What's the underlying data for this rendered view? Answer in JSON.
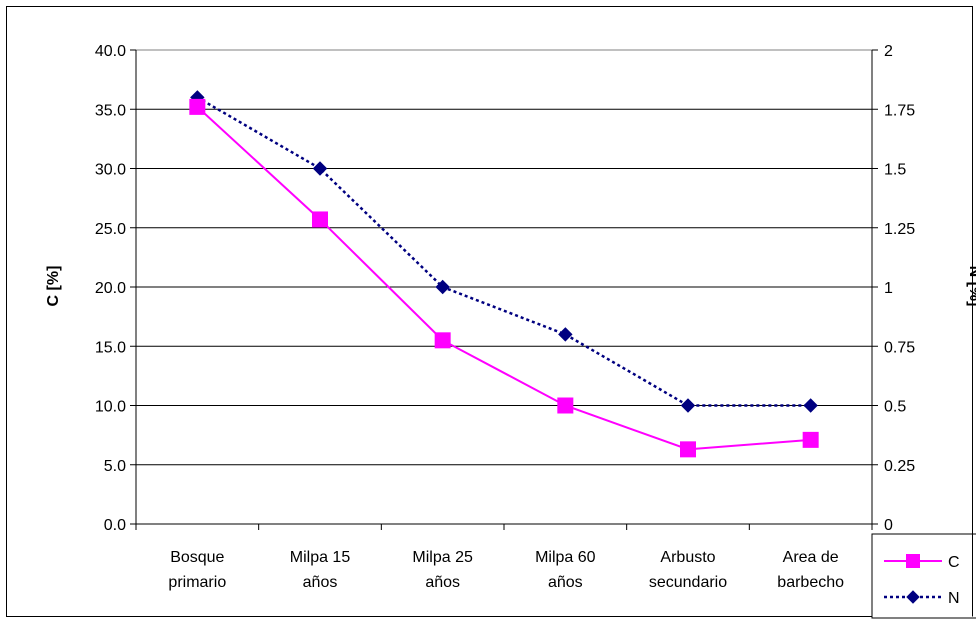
{
  "chart_data": {
    "type": "line",
    "categories": [
      [
        "Bosque",
        "primario"
      ],
      [
        "Milpa 15",
        "años"
      ],
      [
        "Milpa 25",
        "años"
      ],
      [
        "Milpa 60",
        "años"
      ],
      [
        "Arbusto",
        "secundario"
      ],
      [
        "Area de",
        "barbecho"
      ]
    ],
    "ylabel_left": "C [%]",
    "ylabel_right": "N [%]",
    "ylim_left": [
      0,
      40
    ],
    "ylim_right": [
      0,
      2
    ],
    "yticks_left": [
      "0.0",
      "5.0",
      "10.0",
      "15.0",
      "20.0",
      "25.0",
      "30.0",
      "35.0",
      "40.0"
    ],
    "yticks_right": [
      "0",
      "0.25",
      "0.5",
      "0.75",
      "1",
      "1.25",
      "1.5",
      "1.75",
      "2"
    ],
    "grid": true,
    "legend_position": "bottom-right",
    "series": [
      {
        "name": "C",
        "axis": "left",
        "values": [
          35.2,
          25.7,
          15.5,
          10.0,
          6.3,
          7.1
        ],
        "color": "#ff00ff",
        "marker": "square",
        "line_style": "solid"
      },
      {
        "name": "N",
        "axis": "right",
        "values": [
          1.8,
          1.5,
          1.0,
          0.8,
          0.5,
          0.5
        ],
        "color": "#000080",
        "marker": "diamond",
        "line_style": "dotted"
      }
    ]
  }
}
